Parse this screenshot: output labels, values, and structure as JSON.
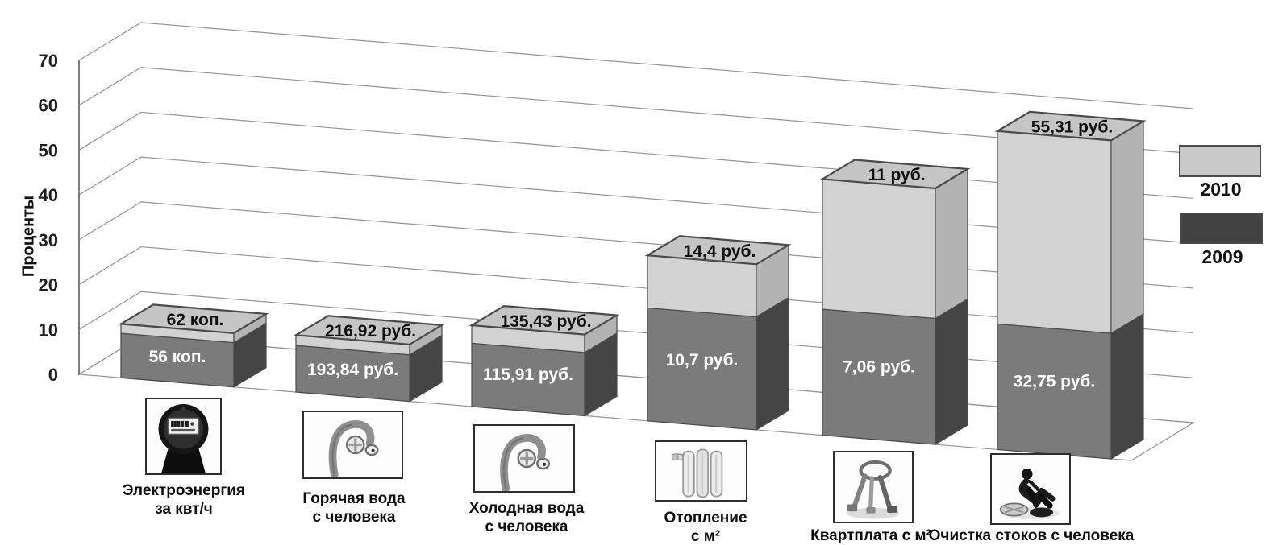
{
  "chart_data": {
    "type": "bar",
    "subtype": "3d-stacked-columns",
    "title": "",
    "ylabel": "Проценты",
    "y_ticks": [
      0,
      10,
      20,
      30,
      40,
      50,
      60,
      70
    ],
    "ylim": [
      0,
      70
    ],
    "grid": true,
    "legend_position": "right",
    "categories": [
      {
        "label_lines": [
          "Электроэнергия",
          "за квт/ч"
        ],
        "icon": "electric-meter"
      },
      {
        "label_lines": [
          "Горячая вода",
          "с человека"
        ],
        "icon": "hot-water-tap"
      },
      {
        "label_lines": [
          "Холодная вода",
          "с человека"
        ],
        "icon": "cold-water-tap"
      },
      {
        "label_lines": [
          "Отопление",
          "с м²"
        ],
        "icon": "radiator"
      },
      {
        "label_lines": [
          "Квартплата с м²"
        ],
        "icon": "apartment-keys"
      },
      {
        "label_lines": [
          "Очистка стоков с человека"
        ],
        "icon": "sewer-worker"
      }
    ],
    "series": [
      {
        "name": "2009",
        "value_labels": [
          "56 коп.",
          "193,84 руб.",
          "115,91 руб.",
          "10,7 руб.",
          "7,06 руб.",
          "32,75 руб."
        ],
        "bar_height_percent": [
          9.9,
          10.4,
          14.1,
          25.2,
          28.1,
          28.0
        ],
        "color_front": "#7b7b7b",
        "color_side": "#454545",
        "label_color": "#ffffff"
      },
      {
        "name": "2010",
        "value_labels": [
          "62 коп.",
          "216,92 руб.",
          "135,43 руб.",
          "14,4 руб.",
          "11 руб.",
          "55,31 руб."
        ],
        "stack_top_percent": [
          12.0,
          12.7,
          18.1,
          36.9,
          57.1,
          71.0
        ],
        "color_front": "#d2d2d2",
        "color_top": "#c5c5c5",
        "color_side": "#b3b3b3",
        "label_color": "#0f0f0f"
      }
    ],
    "legend": [
      {
        "label": "2010",
        "color": "#c9c9c9"
      },
      {
        "label": "2009",
        "color": "#424242"
      }
    ],
    "colors": {
      "gridline": "#949494",
      "axis_line": "#7d7d7d",
      "bar_outline": "#4a4a4a",
      "background": "#ffffff"
    }
  }
}
